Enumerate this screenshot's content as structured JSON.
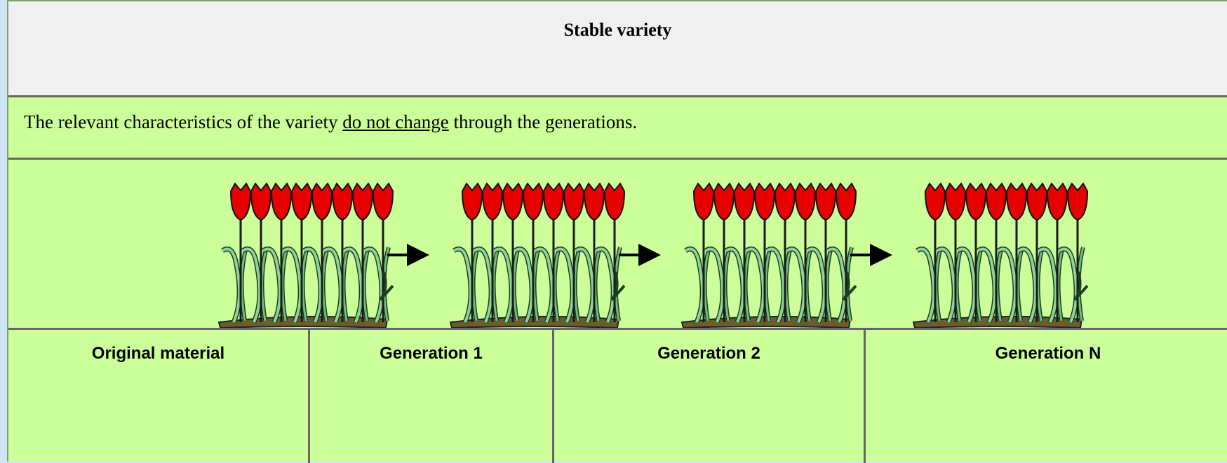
{
  "header": {
    "title": "Stable variety"
  },
  "description": {
    "before": "The relevant characteristics of the variety ",
    "emphasis": "do not change",
    "after": " through the generations."
  },
  "generations": [
    "Original material",
    "Generation 1",
    "Generation 2",
    "Generation N"
  ]
}
